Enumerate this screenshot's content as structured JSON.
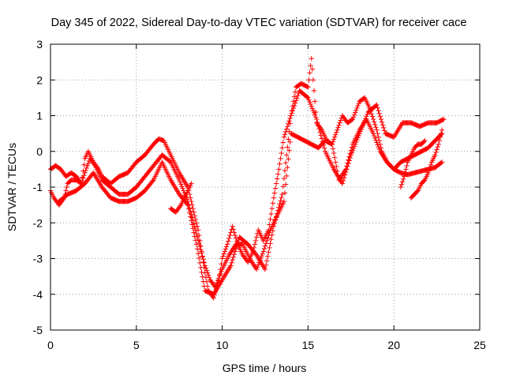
{
  "chart_data": {
    "type": "scatter",
    "title": "Day 345 of 2022, Sidereal Day-to-day VTEC variation (SDTVAR) for receiver cace",
    "xlabel": "GPS time / hours",
    "ylabel": "SDTVAR / TECUs",
    "xlim": [
      0,
      25
    ],
    "ylim": [
      -5,
      3
    ],
    "xticks": [
      0,
      5,
      10,
      15,
      20,
      25
    ],
    "yticks": [
      -5,
      -4,
      -3,
      -2,
      -1,
      0,
      1,
      2,
      3
    ],
    "xtick_labels": [
      "0",
      "5",
      "10",
      "15",
      "20",
      "25"
    ],
    "ytick_labels": [
      "-5",
      "-4",
      "-3",
      "-2",
      "-1",
      "0",
      "1",
      "2",
      "3"
    ],
    "grid": true,
    "marker": "+",
    "color": "#ff0000",
    "series": [
      {
        "x": [
          0.0,
          0.2,
          0.5,
          0.8,
          1.0,
          1.2,
          1.5,
          1.8,
          2.0,
          2.2,
          2.5,
          2.8,
          3.0,
          3.5,
          4.0,
          4.5,
          5.0,
          5.5,
          6.0,
          6.3,
          6.6,
          7.0,
          7.5,
          8.0,
          8.3,
          8.6,
          9.0,
          9.2,
          9.5,
          9.8,
          10.0,
          10.3,
          10.6,
          10.9,
          11.2,
          11.5,
          11.8,
          12.1,
          12.4,
          12.7,
          13.0,
          13.3,
          13.6,
          14.0,
          14.3,
          14.6,
          15.0,
          15.2,
          15.5,
          15.8,
          16.1,
          16.4,
          16.7,
          17.0,
          17.3,
          17.6,
          18.0,
          18.3,
          18.6,
          19.0,
          19.3,
          19.6,
          20.0,
          20.4,
          20.8,
          21.2,
          21.6,
          22.0,
          22.4,
          22.8
        ],
        "y": [
          -1.1,
          -1.3,
          -1.5,
          -1.3,
          -0.9,
          -0.8,
          -0.8,
          -0.9,
          -0.2,
          0.0,
          -0.3,
          -0.5,
          -0.7,
          -0.9,
          -0.7,
          -0.6,
          -0.3,
          -0.1,
          0.2,
          0.35,
          0.3,
          -0.1,
          -0.6,
          -1.0,
          -1.6,
          -2.2,
          -3.4,
          -3.9,
          -4.1,
          -3.6,
          -3.0,
          -2.6,
          -2.1,
          -2.6,
          -2.9,
          -3.1,
          -2.8,
          -2.2,
          -2.5,
          -2.2,
          -1.3,
          -0.5,
          0.4,
          1.0,
          1.8,
          1.9,
          1.8,
          2.6,
          0.8,
          0.6,
          0.3,
          0.2,
          0.6,
          1.0,
          0.8,
          0.9,
          1.4,
          1.5,
          1.2,
          0.6,
          0.0,
          -0.3,
          -0.5,
          -0.6,
          -0.65,
          -0.6,
          -0.55,
          -0.5,
          -0.45,
          -0.3
        ]
      },
      {
        "x": [
          0.0,
          0.3,
          0.6,
          0.9,
          1.2,
          1.5,
          1.8,
          2.0,
          2.3,
          2.6,
          3.0,
          3.5,
          4.0,
          4.5,
          5.0,
          5.5,
          6.0,
          6.5,
          7.0,
          7.5,
          8.0,
          8.5,
          9.0,
          9.3,
          9.6,
          10.0,
          10.4,
          10.8,
          11.2,
          11.6,
          12.0,
          12.4,
          12.8,
          13.2,
          13.6,
          14.0,
          14.4,
          14.8,
          15.2,
          15.6,
          16.0,
          16.4,
          16.8,
          17.2,
          17.6,
          18.0,
          18.4,
          18.8,
          19.2,
          19.6,
          20.0,
          20.4,
          20.8,
          21.2,
          21.6,
          22.0,
          22.4,
          22.8
        ],
        "y": [
          -0.5,
          -0.4,
          -0.5,
          -0.7,
          -0.6,
          -0.7,
          -0.9,
          -0.6,
          -0.2,
          -0.4,
          -0.8,
          -1.0,
          -1.2,
          -1.2,
          -1.0,
          -0.7,
          -0.4,
          -0.1,
          -0.3,
          -0.8,
          -1.4,
          -2.3,
          -3.2,
          -3.6,
          -3.8,
          -3.3,
          -2.9,
          -2.6,
          -2.6,
          -3.0,
          -3.3,
          -2.8,
          -2.2,
          -1.8,
          -1.4,
          0.5,
          0.4,
          0.3,
          0.2,
          0.1,
          0.3,
          0.2,
          -0.8,
          -0.5,
          0.2,
          0.6,
          0.9,
          0.5,
          0.0,
          -0.3,
          -0.5,
          -0.3,
          -0.2,
          -0.1,
          0.0,
          0.1,
          0.3,
          0.5
        ]
      },
      {
        "x": [
          0.5,
          1.0,
          1.5,
          2.0,
          2.5,
          3.0,
          3.5,
          4.0,
          4.5,
          5.0,
          5.5,
          6.0,
          6.5,
          7.0,
          7.5,
          8.0,
          8.5,
          9.0,
          9.5,
          10.0,
          10.5,
          11.0,
          11.5,
          12.0,
          12.5,
          13.0,
          13.5,
          14.0,
          14.5,
          15.0,
          15.5,
          16.0,
          16.5,
          17.0,
          17.5,
          18.0,
          18.5,
          19.0,
          19.5,
          20.0,
          20.5,
          21.0,
          21.5,
          22.0,
          22.5,
          22.9
        ],
        "y": [
          -1.4,
          -1.2,
          -1.1,
          -0.9,
          -0.6,
          -1.0,
          -1.3,
          -1.4,
          -1.4,
          -1.3,
          -1.1,
          -0.8,
          -0.3,
          -0.8,
          -1.2,
          -1.5,
          -2.6,
          -3.9,
          -4.0,
          -3.6,
          -3.2,
          -2.4,
          -2.6,
          -2.9,
          -3.3,
          -2.1,
          -1.2,
          1.0,
          1.7,
          1.5,
          0.9,
          0.0,
          -0.5,
          -0.9,
          -0.1,
          0.5,
          1.1,
          1.3,
          0.5,
          0.4,
          0.8,
          0.8,
          0.7,
          0.8,
          0.8,
          0.9
        ]
      },
      {
        "x": [
          7.0,
          7.3,
          7.6,
          7.9,
          8.2,
          20.4,
          20.6,
          20.8,
          21.0,
          21.2,
          21.4,
          21.6,
          21.8
        ],
        "y": [
          -1.6,
          -1.7,
          -1.5,
          -1.2,
          -0.9,
          -1.0,
          -0.7,
          -0.3,
          -0.1,
          0.1,
          0.2,
          0.2,
          0.3
        ]
      },
      {
        "x": [
          21.0,
          21.2,
          21.4,
          21.6,
          21.8,
          22.0,
          22.2,
          22.4,
          22.6,
          22.8
        ],
        "y": [
          -1.3,
          -1.2,
          -1.1,
          -0.9,
          -0.8,
          -0.6,
          -0.3,
          -0.1,
          0.2,
          0.6
        ]
      }
    ]
  }
}
